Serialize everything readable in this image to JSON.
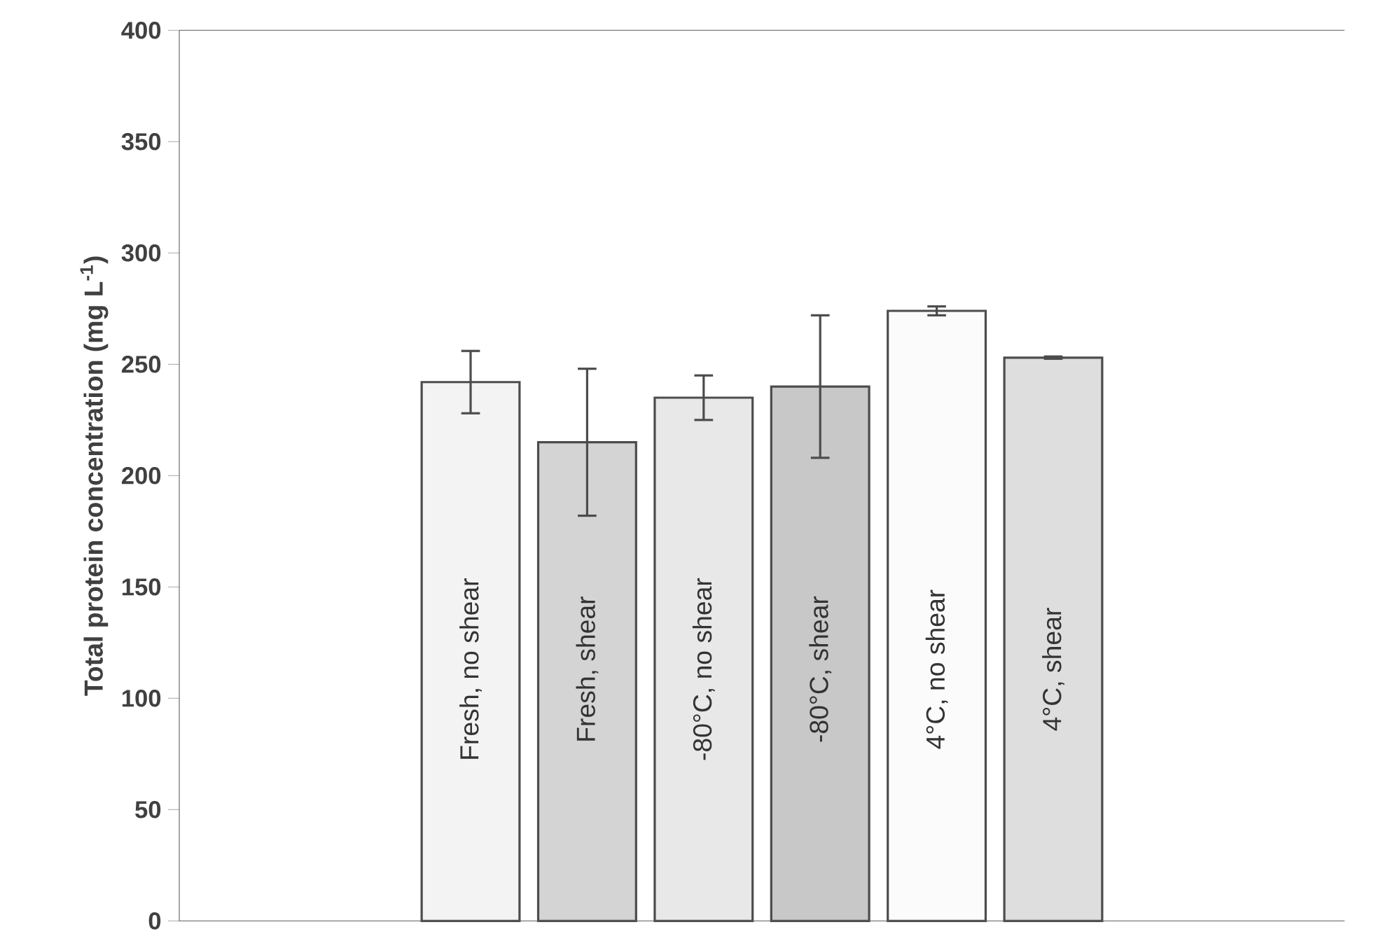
{
  "chart_data": {
    "type": "bar",
    "ylabel": "Total protein concentration (mg L$^{-1}$)",
    "categories": [
      null,
      null,
      "Fresh, no shear",
      "Fresh, shear",
      "-80°C, no shear",
      "-80°C, shear",
      "4°C, no shear",
      "4°C, shear",
      null,
      null
    ],
    "values": [
      null,
      null,
      242,
      215,
      235,
      240,
      274,
      253,
      null,
      null
    ],
    "errors": [
      null,
      null,
      14,
      33,
      10,
      32,
      2,
      0.5,
      null,
      null
    ],
    "colors": [
      null,
      null,
      "#f3f3f3",
      "#d4d4d4",
      "#e8e8e8",
      "#c8c8c8",
      "#fbfbfb",
      "#dedede",
      null,
      null
    ],
    "ylim": [
      0,
      400
    ],
    "yticks": [
      0,
      50,
      100,
      150,
      200,
      250,
      300,
      350,
      400
    ],
    "grid": false
  }
}
